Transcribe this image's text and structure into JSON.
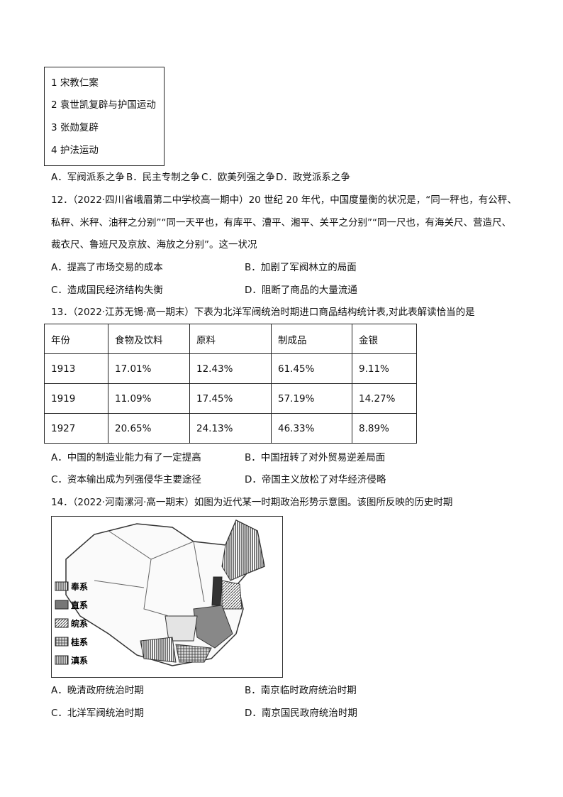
{
  "q11": {
    "box_items": [
      "1 宋教仁案",
      "2 袁世凯复辟与护国运动",
      "3 张勋复辟",
      "4 护法运动"
    ],
    "options": [
      "A．军阀派系之争",
      "B．民主专制之争",
      "C．欧美列强之争",
      "D．政党派系之争"
    ]
  },
  "q12": {
    "lines": [
      "12．（2022·四川省峨眉第二中学校高一期中）20 世纪 20 年代，中国度量衡的状况是，“同一秤也，有公秤、",
      "私秤、米秤、油秤之分别”“同一天平也，有库平、漕平、湘平、关平之分别”“同一尺也，有海关尺、营造尺、",
      "裁衣尺、鲁班尺及京放、海放之分别”。这一状况"
    ],
    "options": [
      "A．提高了市场交易的成本",
      "B．加剧了军阀林立的局面",
      "C．造成国民经济结构失衡",
      "D．阻断了商品的大量流通"
    ]
  },
  "q13": {
    "stem": "13．（2022·江苏无锡·高一期末）下表为北洋军阀统治时期进口商品结构统计表,对此表解读恰当的是",
    "table": {
      "headers": [
        "年份",
        "食物及饮料",
        "原料",
        "制成品",
        "金银"
      ],
      "rows": [
        [
          "1913",
          "17.01%",
          "12.43%",
          "61.45%",
          "9.11%"
        ],
        [
          "1919",
          "11.09%",
          "17.45%",
          "57.19%",
          "14.27%"
        ],
        [
          "1927",
          "20.65%",
          "24.13%",
          "46.33%",
          "8.89%"
        ]
      ]
    },
    "options": [
      "A．中国的制造业能力有了一定提高",
      "B．中国扭转了对外贸易逆差局面",
      "C．资本输出成为列强侵华主要途径",
      "D．帝国主义放松了对华经济侵略"
    ]
  },
  "q14": {
    "stem": "14．（2022·河南漯河·高一期末）如图为近代某一时期政治形势示意图。该图所反映的历史时期",
    "legend": [
      "奉系",
      "直系",
      "皖系",
      "桂系",
      "滇系"
    ],
    "options": [
      "A．晚清政府统治时期",
      "B．南京临时政府统治时期",
      "C．北洋军阀统治时期",
      "D．南京国民政府统治时期"
    ]
  }
}
